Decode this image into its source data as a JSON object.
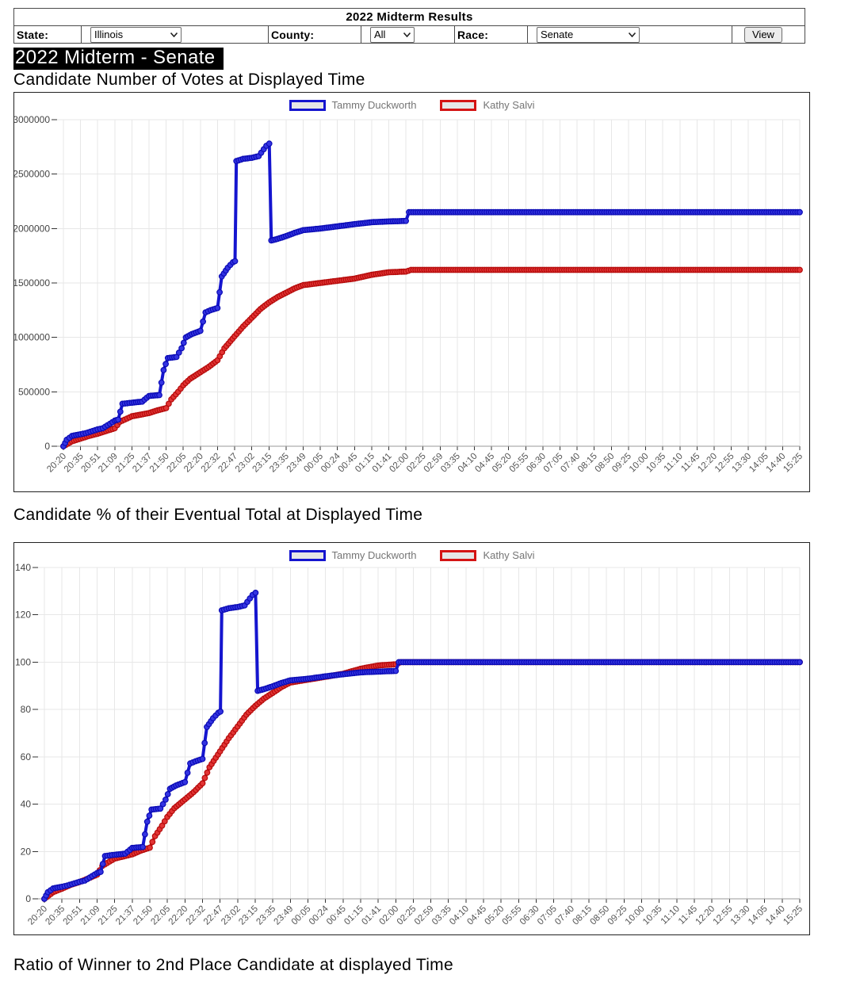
{
  "controls": {
    "title": "2022 Midterm Results",
    "state": {
      "label": "State:",
      "value": "Illinois"
    },
    "county": {
      "label": "County:",
      "value": "All"
    },
    "race": {
      "label": "Race:",
      "value": "Senate"
    },
    "view_button": "View"
  },
  "title_bar": "2022 Midterm - Senate",
  "sections": [
    {
      "heading": "Candidate Number of Votes at Displayed Time"
    },
    {
      "heading": "Candidate % of their Eventual Total at Displayed Time"
    },
    {
      "heading": "Ratio of Winner to 2nd Place Candidate at displayed Time"
    }
  ],
  "colors": {
    "duckworth_line": "#1515cf",
    "duckworth_marker": "#3434e2",
    "duckworth_dark": "#0b0bb5",
    "salvi_line": "#d41414",
    "salvi_marker": "#e23434",
    "salvi_dark": "#b50b0b",
    "grid": "#e7e7e7",
    "baseline": "#9a9a9a",
    "tick": "#333333",
    "axis_label": "#555555",
    "legend_text": "#757575",
    "legend_fill": "#e6e6e6"
  },
  "chart_data": [
    {
      "type": "line",
      "title": "Candidate Number of Votes at Displayed Time",
      "xlabel": "",
      "ylabel": "",
      "grid": true,
      "legend_position": "top-center",
      "x_ticks": [
        "20:20",
        "20:35",
        "20:51",
        "21:09",
        "21:25",
        "21:37",
        "21:50",
        "22:05",
        "22:20",
        "22:32",
        "22:47",
        "23:02",
        "23:15",
        "23:35",
        "23:49",
        "00:05",
        "00:24",
        "00:45",
        "01:15",
        "01:41",
        "02:00",
        "02:25",
        "02:59",
        "03:35",
        "04:10",
        "04:45",
        "05:20",
        "05:55",
        "06:30",
        "07:05",
        "07:40",
        "08:15",
        "08:50",
        "09:25",
        "10:00",
        "10:35",
        "11:10",
        "11:45",
        "12:20",
        "12:55",
        "13:30",
        "14:05",
        "14:40",
        "15:25"
      ],
      "y_ticks": [
        0,
        500000,
        1000000,
        1500000,
        2000000,
        2500000,
        3000000
      ],
      "ylim": [
        0,
        3000000
      ],
      "series": [
        {
          "name": "Tammy Duckworth",
          "color": "#1515cf",
          "marker_fill": "#3434e2",
          "marker_stroke": "#0b0bb5",
          "points": [
            [
              0,
              0
            ],
            [
              0.2,
              60000
            ],
            [
              0.5,
              95000
            ],
            [
              1,
              110000
            ],
            [
              1.3,
              120000
            ],
            [
              2,
              155000
            ],
            [
              2.3,
              165000
            ],
            [
              3,
              235000
            ],
            [
              3.2,
              245000
            ],
            [
              3.45,
              390000
            ],
            [
              4,
              400000
            ],
            [
              4.6,
              410000
            ],
            [
              5,
              462000
            ],
            [
              5.6,
              470000
            ],
            [
              5.85,
              700000
            ],
            [
              6.1,
              810000
            ],
            [
              6.6,
              820000
            ],
            [
              6.9,
              900000
            ],
            [
              7.15,
              1000000
            ],
            [
              7.5,
              1030000
            ],
            [
              8,
              1060000
            ],
            [
              8.3,
              1230000
            ],
            [
              8.6,
              1250000
            ],
            [
              9,
              1270000
            ],
            [
              9.25,
              1560000
            ],
            [
              9.6,
              1640000
            ],
            [
              9.9,
              1690000
            ],
            [
              10.02,
              1700000
            ],
            [
              10.1,
              2620000
            ],
            [
              10.5,
              2640000
            ],
            [
              11,
              2650000
            ],
            [
              11.4,
              2665000
            ],
            [
              11.85,
              2760000
            ],
            [
              12.02,
              2780000
            ],
            [
              12.14,
              1890000
            ],
            [
              12.5,
              1905000
            ],
            [
              13,
              1930000
            ],
            [
              13.5,
              1960000
            ],
            [
              14,
              1985000
            ],
            [
              15,
              2000000
            ],
            [
              16,
              2020000
            ],
            [
              17,
              2040000
            ],
            [
              18,
              2058000
            ],
            [
              19,
              2065000
            ],
            [
              20,
              2070000
            ],
            [
              20.18,
              2150000
            ],
            [
              43,
              2150000
            ]
          ]
        },
        {
          "name": "Kathy Salvi",
          "color": "#d41414",
          "marker_fill": "#e23434",
          "marker_stroke": "#b50b0b",
          "points": [
            [
              0,
              0
            ],
            [
              0.5,
              45000
            ],
            [
              1,
              70000
            ],
            [
              1.5,
              95000
            ],
            [
              2,
              115000
            ],
            [
              2.5,
              140000
            ],
            [
              3,
              165000
            ],
            [
              3.3,
              225000
            ],
            [
              4,
              275000
            ],
            [
              4.5,
              290000
            ],
            [
              5,
              305000
            ],
            [
              5.5,
              330000
            ],
            [
              6,
              350000
            ],
            [
              6.3,
              430000
            ],
            [
              6.7,
              500000
            ],
            [
              7,
              560000
            ],
            [
              7.4,
              620000
            ],
            [
              8,
              680000
            ],
            [
              8.5,
              730000
            ],
            [
              9,
              790000
            ],
            [
              9.4,
              900000
            ],
            [
              10,
              1010000
            ],
            [
              10.5,
              1100000
            ],
            [
              11,
              1180000
            ],
            [
              11.5,
              1260000
            ],
            [
              12,
              1320000
            ],
            [
              12.5,
              1370000
            ],
            [
              13,
              1410000
            ],
            [
              13.5,
              1450000
            ],
            [
              14,
              1480000
            ],
            [
              15,
              1500000
            ],
            [
              16,
              1520000
            ],
            [
              17,
              1540000
            ],
            [
              18,
              1575000
            ],
            [
              19,
              1598000
            ],
            [
              20,
              1605000
            ],
            [
              20.3,
              1620000
            ],
            [
              43,
              1620000
            ]
          ]
        }
      ]
    },
    {
      "type": "line",
      "title": "Candidate % of their Eventual Total at Displayed Time",
      "xlabel": "",
      "ylabel": "",
      "grid": true,
      "legend_position": "top-center",
      "x_ticks": [
        "20:20",
        "20:35",
        "20:51",
        "21:09",
        "21:25",
        "21:37",
        "21:50",
        "22:05",
        "22:20",
        "22:32",
        "22:47",
        "23:02",
        "23:15",
        "23:35",
        "23:49",
        "00:05",
        "00:24",
        "00:45",
        "01:15",
        "01:41",
        "02:00",
        "02:25",
        "02:59",
        "03:35",
        "04:10",
        "04:45",
        "05:20",
        "05:55",
        "06:30",
        "07:05",
        "07:40",
        "08:15",
        "08:50",
        "09:25",
        "10:00",
        "10:35",
        "11:10",
        "11:45",
        "12:20",
        "12:55",
        "13:30",
        "14:05",
        "14:40",
        "15:25"
      ],
      "y_ticks": [
        0,
        20,
        40,
        60,
        80,
        100,
        120,
        140
      ],
      "ylim": [
        0,
        140
      ],
      "series": [
        {
          "name": "Tammy Duckworth",
          "color": "#1515cf",
          "marker_fill": "#3434e2",
          "marker_stroke": "#0b0bb5",
          "points": [
            [
              0,
              0
            ],
            [
              0.2,
              2.8
            ],
            [
              0.5,
              4.4
            ],
            [
              1,
              5.1
            ],
            [
              1.3,
              5.6
            ],
            [
              2,
              7.2
            ],
            [
              2.3,
              7.7
            ],
            [
              3,
              10.9
            ],
            [
              3.2,
              11.4
            ],
            [
              3.45,
              18.1
            ],
            [
              4,
              18.6
            ],
            [
              4.6,
              19.1
            ],
            [
              5,
              21.5
            ],
            [
              5.6,
              21.9
            ],
            [
              5.85,
              32.6
            ],
            [
              6.1,
              37.7
            ],
            [
              6.6,
              38.1
            ],
            [
              6.9,
              41.9
            ],
            [
              7.15,
              46.5
            ],
            [
              7.5,
              47.9
            ],
            [
              8,
              49.3
            ],
            [
              8.3,
              57.2
            ],
            [
              8.6,
              58.1
            ],
            [
              9,
              59.1
            ],
            [
              9.25,
              72.6
            ],
            [
              9.6,
              76.3
            ],
            [
              9.9,
              78.6
            ],
            [
              10.02,
              79.1
            ],
            [
              10.1,
              121.9
            ],
            [
              10.5,
              122.8
            ],
            [
              11,
              123.3
            ],
            [
              11.4,
              124.0
            ],
            [
              11.85,
              128.4
            ],
            [
              12.02,
              129.3
            ],
            [
              12.14,
              87.9
            ],
            [
              12.5,
              88.6
            ],
            [
              13,
              89.8
            ],
            [
              13.5,
              91.2
            ],
            [
              14,
              92.3
            ],
            [
              15,
              93.0
            ],
            [
              16,
              94.0
            ],
            [
              17,
              94.9
            ],
            [
              18,
              95.7
            ],
            [
              19,
              96.0
            ],
            [
              20,
              96.3
            ],
            [
              20.18,
              100
            ],
            [
              43,
              100
            ]
          ]
        },
        {
          "name": "Kathy Salvi",
          "color": "#d41414",
          "marker_fill": "#e23434",
          "marker_stroke": "#b50b0b",
          "points": [
            [
              0,
              0
            ],
            [
              0.5,
              2.8
            ],
            [
              1,
              4.3
            ],
            [
              1.5,
              5.9
            ],
            [
              2,
              7.1
            ],
            [
              2.5,
              8.6
            ],
            [
              3,
              10.2
            ],
            [
              3.3,
              13.9
            ],
            [
              4,
              17.0
            ],
            [
              4.5,
              17.9
            ],
            [
              5,
              18.8
            ],
            [
              5.5,
              20.4
            ],
            [
              6,
              21.6
            ],
            [
              6.3,
              26.5
            ],
            [
              6.7,
              30.9
            ],
            [
              7,
              34.6
            ],
            [
              7.4,
              38.3
            ],
            [
              8,
              42.0
            ],
            [
              8.5,
              45.1
            ],
            [
              9,
              48.8
            ],
            [
              9.4,
              55.6
            ],
            [
              10,
              62.3
            ],
            [
              10.5,
              67.9
            ],
            [
              11,
              72.8
            ],
            [
              11.5,
              77.8
            ],
            [
              12,
              81.5
            ],
            [
              12.5,
              84.6
            ],
            [
              13,
              87.0
            ],
            [
              13.5,
              89.5
            ],
            [
              14,
              91.4
            ],
            [
              15,
              92.6
            ],
            [
              16,
              93.8
            ],
            [
              17,
              95.1
            ],
            [
              18,
              97.2
            ],
            [
              19,
              98.6
            ],
            [
              20,
              99.1
            ],
            [
              20.3,
              100
            ],
            [
              43,
              100
            ]
          ]
        }
      ]
    }
  ]
}
